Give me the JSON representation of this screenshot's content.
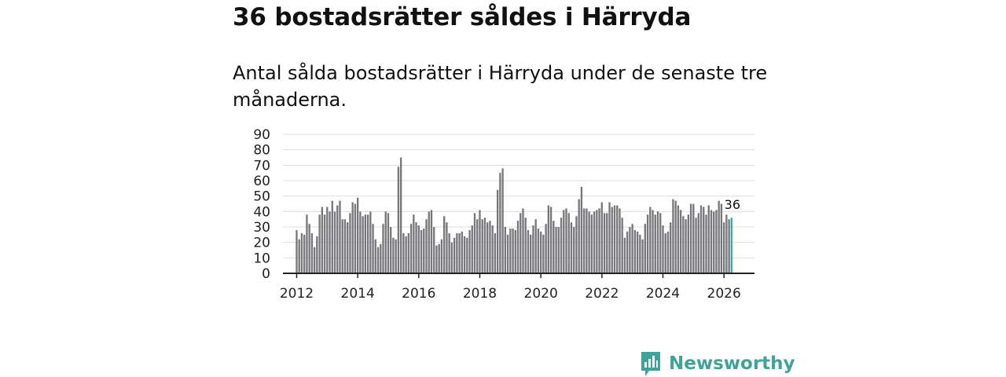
{
  "header": {
    "title": "36 bostadsrätter såldes i Härryda",
    "subtitle": "Antal sålda bostadsrätter i Härryda under de senaste tre månaderna."
  },
  "brand": {
    "name": "Newsworthy",
    "icon": "newsworthy-logo-icon",
    "color": "#3fa39a"
  },
  "colors": {
    "bar": "#77767b",
    "highlight": "#2bb0a6",
    "grid": "#dddddd",
    "axis": "#222222"
  },
  "chart_data": {
    "type": "bar",
    "title": "36 bostadsrätter såldes i Härryda",
    "xlabel": "",
    "ylabel": "",
    "ylim": [
      0,
      90
    ],
    "yticks": [
      0,
      10,
      20,
      30,
      40,
      50,
      60,
      70,
      80,
      90
    ],
    "xticks": [
      "2012",
      "2014",
      "2016",
      "2018",
      "2020",
      "2022",
      "2024",
      "2026"
    ],
    "xlim": [
      2011.55,
      2027.0
    ],
    "start": 2012.0,
    "step": 0.08333,
    "grid": true,
    "last_label": "36",
    "values": [
      28,
      22,
      26,
      25,
      38,
      32,
      26,
      17,
      24,
      38,
      43,
      38,
      43,
      40,
      47,
      40,
      44,
      47,
      35,
      35,
      33,
      39,
      46,
      45,
      49,
      40,
      37,
      38,
      38,
      40,
      32,
      22,
      17,
      19,
      32,
      40,
      39,
      30,
      23,
      22,
      69,
      75,
      26,
      24,
      26,
      32,
      38,
      33,
      31,
      28,
      29,
      35,
      40,
      41,
      30,
      18,
      19,
      22,
      37,
      33,
      26,
      20,
      23,
      26,
      26,
      27,
      24,
      23,
      28,
      31,
      39,
      35,
      41,
      35,
      36,
      33,
      34,
      31,
      26,
      54,
      65,
      68,
      30,
      25,
      29,
      29,
      28,
      34,
      39,
      42,
      36,
      28,
      25,
      31,
      35,
      29,
      27,
      25,
      32,
      44,
      43,
      34,
      30,
      30,
      36,
      41,
      42,
      39,
      33,
      30,
      37,
      48,
      56,
      42,
      42,
      40,
      38,
      40,
      41,
      42,
      46,
      39,
      39,
      46,
      43,
      44,
      44,
      42,
      36,
      23,
      27,
      30,
      32,
      28,
      27,
      25,
      22,
      32,
      38,
      43,
      41,
      38,
      40,
      39,
      31,
      26,
      27,
      33,
      48,
      47,
      44,
      41,
      37,
      35,
      38,
      45,
      45,
      36,
      39,
      44,
      43,
      38,
      44,
      41,
      40,
      41,
      47,
      45,
      33,
      38,
      35,
      36
    ]
  }
}
